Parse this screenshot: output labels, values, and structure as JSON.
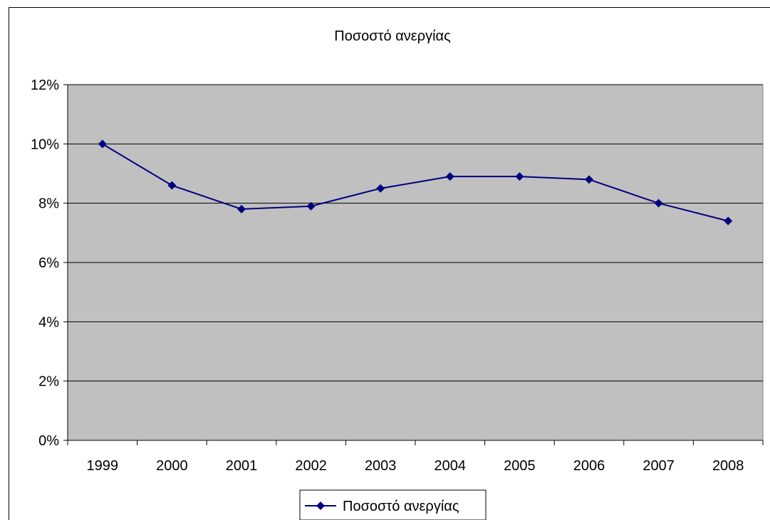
{
  "chart_data": {
    "type": "line",
    "title": "Ποσοστό ανεργίας",
    "xlabel": "",
    "ylabel": "",
    "categories": [
      "1999",
      "2000",
      "2001",
      "2002",
      "2003",
      "2004",
      "2005",
      "2006",
      "2007",
      "2008"
    ],
    "series": [
      {
        "name": "Ποσοστό ανεργίας",
        "values": [
          0.1,
          0.086,
          0.078,
          0.079,
          0.085,
          0.089,
          0.089,
          0.088,
          0.08,
          0.074
        ]
      }
    ],
    "ylim": [
      0,
      0.12
    ],
    "yticks": [
      0,
      0.02,
      0.04,
      0.06,
      0.08,
      0.1,
      0.12
    ],
    "ytick_labels": [
      "0%",
      "2%",
      "4%",
      "6%",
      "8%",
      "10%",
      "12%"
    ],
    "grid": true,
    "legend_position": "bottom",
    "colors": {
      "plot_background": "#c0c0c0",
      "series_line": "#000080",
      "gridline": "#000000"
    }
  }
}
